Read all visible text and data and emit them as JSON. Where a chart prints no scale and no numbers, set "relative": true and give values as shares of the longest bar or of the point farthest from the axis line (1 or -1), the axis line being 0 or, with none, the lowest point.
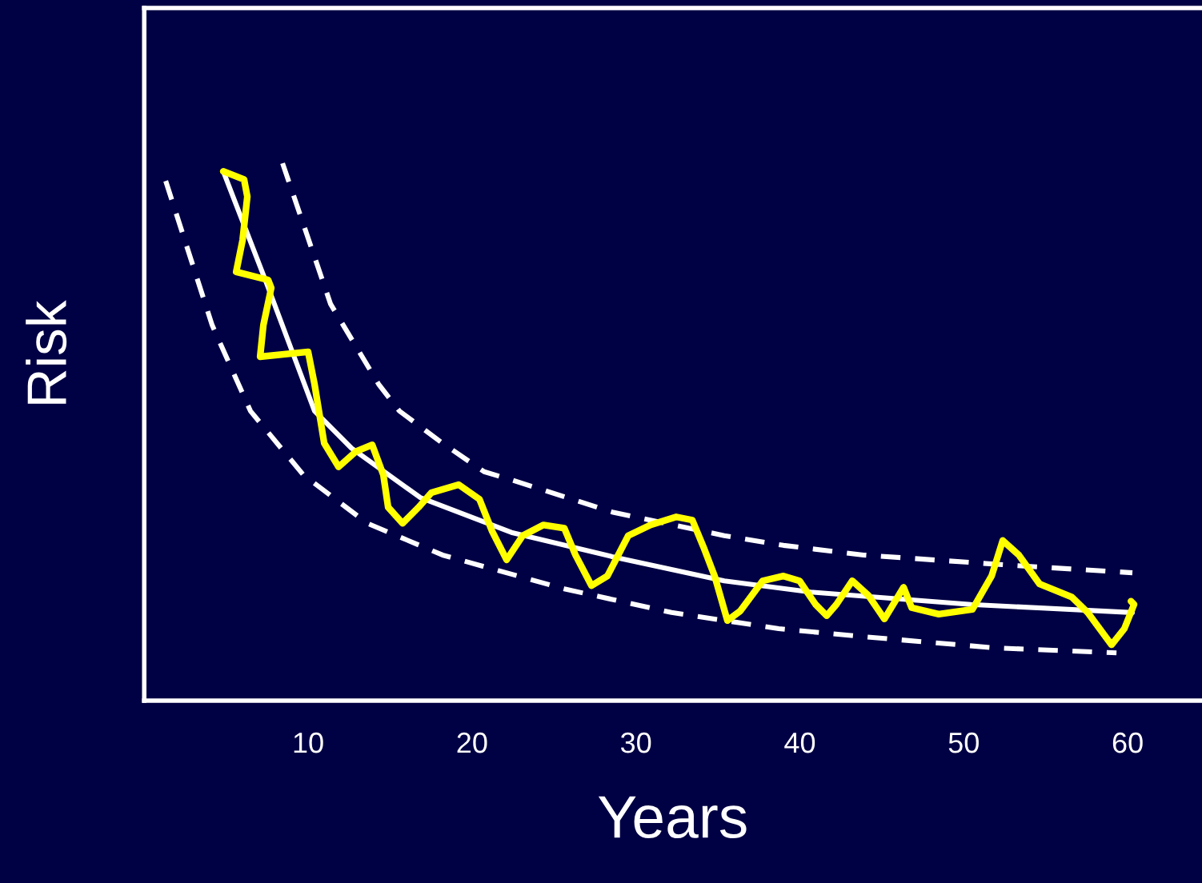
{
  "chart_data": {
    "type": "line",
    "xlabel": "Years",
    "ylabel": "Risk",
    "relative": true,
    "tick_labels": "x",
    "grid": false,
    "legend": false,
    "xlim": [
      0,
      64.5
    ],
    "xticks": [
      10,
      20,
      30,
      40,
      50,
      60
    ],
    "series": [
      {
        "color": "#ffffff",
        "line_style": "dashed",
        "x": [
          1.31,
          4.14,
          6.48,
          9.71,
          13.61,
          18.2,
          25.63,
          32.17,
          38.71,
          43.89,
          51.99,
          59.32
        ],
        "values": [
          0.967,
          0.699,
          0.539,
          0.42,
          0.33,
          0.271,
          0.208,
          0.164,
          0.134,
          0.119,
          0.098,
          0.089
        ]
      },
      {
        "color": "#ffffff",
        "line_style": "dashed",
        "x": [
          8.44,
          11.37,
          14.3,
          15.57,
          18.2,
          20.74,
          22.4,
          28.55,
          35.39,
          39.0,
          43.89,
          52.38,
          60.29
        ],
        "values": [
          1.0,
          0.738,
          0.589,
          0.539,
          0.479,
          0.426,
          0.411,
          0.351,
          0.307,
          0.289,
          0.271,
          0.253,
          0.238
        ]
      },
      {
        "color": "#ffffff",
        "line_style": "solid",
        "x": [
          4.82,
          7.46,
          9.22,
          10.39,
          12.64,
          16.84,
          22.4,
          28.55,
          35.39,
          40.66,
          50.43,
          60.29
        ],
        "values": [
          0.985,
          0.777,
          0.634,
          0.539,
          0.47,
          0.378,
          0.313,
          0.268,
          0.223,
          0.202,
          0.179,
          0.164
        ]
      },
      {
        "color": "#ffff00",
        "line_style": "solid",
        "x": [
          4.82,
          6.09,
          6.29,
          6.0,
          5.61,
          7.56,
          7.75,
          7.27,
          7.07,
          10.0,
          10.39,
          10.98,
          11.86,
          12.93,
          13.91,
          14.59,
          14.88,
          15.76,
          16.74,
          17.52,
          19.18,
          20.45,
          21.23,
          22.11,
          23.09,
          24.36,
          25.63,
          26.31,
          27.29,
          28.26,
          29.53,
          30.9,
          32.46,
          33.44,
          34.12,
          34.8,
          35.58,
          36.37,
          37.73,
          39.0,
          39.98,
          40.96,
          41.64,
          42.23,
          43.2,
          44.18,
          45.16,
          46.33,
          46.82,
          48.48,
          50.53,
          51.7,
          52.38,
          53.36,
          54.63,
          56.58,
          57.56,
          59.02,
          59.8,
          60.39,
          60.2
        ],
        "values": [
          0.985,
          0.97,
          0.938,
          0.857,
          0.798,
          0.783,
          0.768,
          0.699,
          0.64,
          0.649,
          0.589,
          0.479,
          0.435,
          0.464,
          0.476,
          0.42,
          0.36,
          0.33,
          0.36,
          0.387,
          0.402,
          0.375,
          0.315,
          0.262,
          0.307,
          0.327,
          0.321,
          0.271,
          0.214,
          0.232,
          0.307,
          0.327,
          0.342,
          0.336,
          0.286,
          0.232,
          0.149,
          0.167,
          0.223,
          0.232,
          0.223,
          0.179,
          0.158,
          0.179,
          0.223,
          0.196,
          0.152,
          0.211,
          0.173,
          0.161,
          0.17,
          0.232,
          0.298,
          0.271,
          0.217,
          0.193,
          0.164,
          0.104,
          0.134,
          0.179,
          0.185
        ]
      }
    ]
  }
}
